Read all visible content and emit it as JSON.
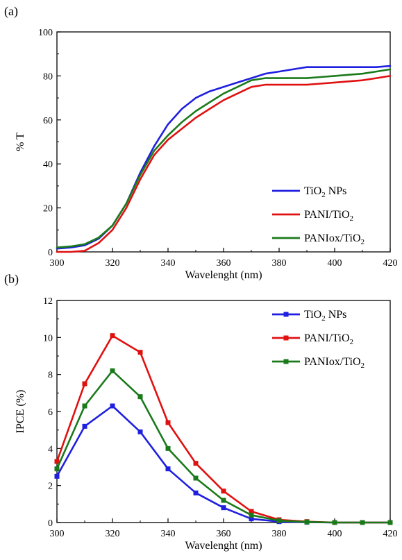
{
  "chart_data": [
    {
      "type": "line",
      "panel_label": "(a)",
      "xlabel": "Wavelenght (nm)",
      "ylabel": "% T",
      "xlim": [
        300,
        420
      ],
      "ylim": [
        0,
        100
      ],
      "xticks": [
        "300",
        "320",
        "340",
        "360",
        "380",
        "400",
        "420"
      ],
      "yticks": [
        "0",
        "20",
        "40",
        "60",
        "80",
        "100"
      ],
      "legend_position": "bottom-right",
      "series": [
        {
          "name_main": "TiO",
          "name_sub": "2",
          "name_tail": " NPs",
          "color": "#1f1fe0",
          "x": [
            300,
            305,
            310,
            315,
            320,
            325,
            330,
            335,
            340,
            345,
            350,
            355,
            360,
            365,
            370,
            375,
            380,
            385,
            390,
            395,
            400,
            405,
            410,
            415,
            420
          ],
          "y": [
            1.5,
            2,
            3,
            6,
            12,
            22,
            36,
            48,
            58,
            65,
            70,
            73,
            75,
            77,
            79,
            81,
            82,
            83,
            84,
            84,
            84,
            84,
            84,
            84,
            84.5
          ]
        },
        {
          "name_main": "PANI/TiO",
          "name_sub": "2",
          "name_tail": "",
          "color": "#e01010",
          "x": [
            300,
            305,
            310,
            315,
            320,
            325,
            330,
            335,
            340,
            345,
            350,
            355,
            360,
            365,
            370,
            375,
            380,
            385,
            390,
            395,
            400,
            405,
            410,
            415,
            420
          ],
          "y": [
            0,
            0,
            0.5,
            4,
            10,
            20,
            33,
            44,
            51,
            56,
            61,
            65,
            69,
            72,
            75,
            76,
            76,
            76,
            76,
            76.5,
            77,
            77.5,
            78,
            79,
            80
          ]
        },
        {
          "name_main": "PANIox/TiO",
          "name_sub": "2",
          "name_tail": "",
          "color": "#1a7a1a",
          "x": [
            300,
            305,
            310,
            315,
            320,
            325,
            330,
            335,
            340,
            345,
            350,
            355,
            360,
            365,
            370,
            375,
            380,
            385,
            390,
            395,
            400,
            405,
            410,
            415,
            420
          ],
          "y": [
            2,
            2.5,
            3.5,
            6.5,
            12,
            22,
            35,
            46,
            53,
            59,
            64,
            68,
            72,
            75,
            78,
            79,
            79,
            79,
            79,
            79.5,
            80,
            80.5,
            81,
            82,
            83
          ]
        }
      ]
    },
    {
      "type": "line",
      "panel_label": "(b)",
      "xlabel": "Wavelenght (nm)",
      "ylabel": "IPCE (%)",
      "xlim": [
        300,
        420
      ],
      "ylim": [
        0,
        12
      ],
      "xticks": [
        "300",
        "320",
        "340",
        "360",
        "380",
        "400",
        "420"
      ],
      "yticks": [
        "0",
        "2",
        "4",
        "6",
        "8",
        "10",
        "12"
      ],
      "legend_position": "top-right",
      "series": [
        {
          "name_main": "TiO",
          "name_sub": "2",
          "name_tail": " NPs",
          "color": "#1f1fe0",
          "x": [
            300,
            310,
            320,
            330,
            340,
            350,
            360,
            370,
            380,
            390,
            400,
            410,
            420
          ],
          "y": [
            2.5,
            5.2,
            6.3,
            4.9,
            2.9,
            1.6,
            0.8,
            0.2,
            0.05,
            0.02,
            0,
            0,
            0
          ]
        },
        {
          "name_main": "PANI/TiO",
          "name_sub": "2",
          "name_tail": "",
          "color": "#e01010",
          "x": [
            300,
            310,
            320,
            330,
            340,
            350,
            360,
            370,
            380,
            390,
            400,
            410,
            420
          ],
          "y": [
            3.3,
            7.5,
            10.1,
            9.2,
            5.4,
            3.2,
            1.7,
            0.6,
            0.15,
            0.05,
            0,
            0,
            0
          ]
        },
        {
          "name_main": "PANIox/TiO",
          "name_sub": "2",
          "name_tail": "",
          "color": "#1a7a1a",
          "x": [
            300,
            310,
            320,
            330,
            340,
            350,
            360,
            370,
            380,
            390,
            400,
            410,
            420
          ],
          "y": [
            2.9,
            6.3,
            8.2,
            6.8,
            4.0,
            2.4,
            1.2,
            0.4,
            0.1,
            0.03,
            0,
            0,
            0
          ]
        }
      ]
    }
  ]
}
